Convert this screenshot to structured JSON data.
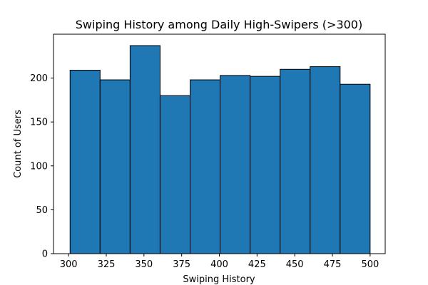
{
  "chart_data": {
    "type": "bar",
    "title": "Swiping History among Daily High-Swipers (>300)",
    "xlabel": "Swiping History",
    "ylabel": "Count of Users",
    "bin_edges": [
      301,
      320.9,
      340.8,
      360.7,
      380.6,
      400.5,
      420.4,
      440.3,
      460.2,
      480.1,
      500
    ],
    "values": [
      209,
      198,
      237,
      180,
      198,
      203,
      202,
      210,
      213,
      193
    ],
    "xlim": [
      290,
      510
    ],
    "ylim": [
      0,
      250
    ],
    "xticks": [
      300,
      325,
      350,
      375,
      400,
      425,
      450,
      475,
      500
    ],
    "yticks": [
      0,
      50,
      100,
      150,
      200
    ],
    "bar_color": "#1f77b4",
    "edge_color": "#000000",
    "grid": false
  }
}
